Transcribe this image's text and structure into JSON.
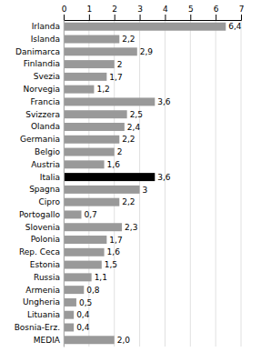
{
  "chart_data": {
    "type": "bar",
    "orientation": "horizontal",
    "categories": [
      "Irlanda",
      "Islanda",
      "Danimarca",
      "Finlandia",
      "Svezia",
      "Norvegia",
      "Francia",
      "Svizzera",
      "Olanda",
      "Germania",
      "Belgio",
      "Austria",
      "Italia",
      "Spagna",
      "Cipro",
      "Portogallo",
      "Slovenia",
      "Polonia",
      "Rep. Ceca",
      "Estonia",
      "Russia",
      "Armenia",
      "Ungheria",
      "Lituania",
      "Bosnia-Erz.",
      "MEDIA"
    ],
    "values": [
      6.4,
      2.2,
      2.9,
      2.0,
      1.7,
      1.2,
      3.6,
      2.5,
      2.4,
      2.2,
      2.0,
      1.6,
      3.6,
      3.0,
      2.2,
      0.7,
      2.3,
      1.7,
      1.6,
      1.5,
      1.1,
      0.8,
      0.5,
      0.4,
      0.4,
      2.0
    ],
    "value_labels": [
      "6,4",
      "2,2",
      "2,9",
      "2",
      "1,7",
      "1,2",
      "3,6",
      "2,5",
      "2,4",
      "2,2",
      "2",
      "1,6",
      "3,6",
      "3",
      "2,2",
      "0,7",
      "2,3",
      "1,7",
      "1,6",
      "1,5",
      "1,1",
      "0,8",
      "0,5",
      "0,4",
      "0,4",
      "2,0"
    ],
    "colors": [
      "#999999",
      "#999999",
      "#999999",
      "#999999",
      "#999999",
      "#999999",
      "#999999",
      "#999999",
      "#999999",
      "#999999",
      "#999999",
      "#999999",
      "#000000",
      "#999999",
      "#999999",
      "#999999",
      "#999999",
      "#999999",
      "#999999",
      "#999999",
      "#999999",
      "#999999",
      "#999999",
      "#999999",
      "#999999",
      "#999999"
    ],
    "data_labels": true,
    "xlim": [
      0,
      7
    ],
    "xticks": [
      0,
      1,
      2,
      3,
      4,
      5,
      6,
      7
    ],
    "grid": true
  }
}
